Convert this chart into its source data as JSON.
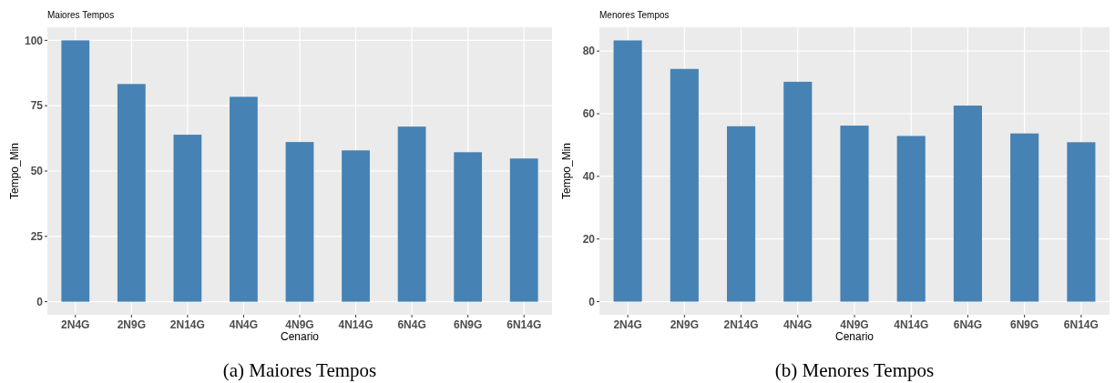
{
  "chart_data": [
    {
      "type": "bar",
      "title": "Maiores Tempos",
      "xlabel": "Cenario",
      "ylabel": "Tempo_Min",
      "annotations": [
        "(a) Maiores Tempos"
      ],
      "categories": [
        "2N4G",
        "2N9G",
        "2N14G",
        "4N4G",
        "4N9G",
        "4N14G",
        "6N4G",
        "6N9G",
        "6N14G"
      ],
      "values": [
        100,
        83.3,
        63.9,
        78.4,
        61.1,
        57.9,
        67.0,
        57.2,
        54.8
      ],
      "color": "#4682b4",
      "ylim": [
        -5,
        105
      ],
      "yticks": [
        0,
        25,
        50,
        75,
        100
      ],
      "grid": true
    },
    {
      "type": "bar",
      "title": "Menores Tempos",
      "xlabel": "Cenario",
      "ylabel": "Tempo_Min",
      "annotations": [
        "(b) Menores Tempos"
      ],
      "categories": [
        "2N4G",
        "2N9G",
        "2N14G",
        "4N4G",
        "4N9G",
        "4N14G",
        "6N4G",
        "6N9G",
        "6N14G"
      ],
      "values": [
        83.4,
        74.3,
        56.0,
        70.2,
        56.2,
        52.9,
        62.6,
        53.7,
        50.9
      ],
      "color": "#4682b4",
      "ylim": [
        -4.2,
        87.6
      ],
      "yticks": [
        0,
        20,
        40,
        60,
        80
      ],
      "grid": true
    }
  ]
}
